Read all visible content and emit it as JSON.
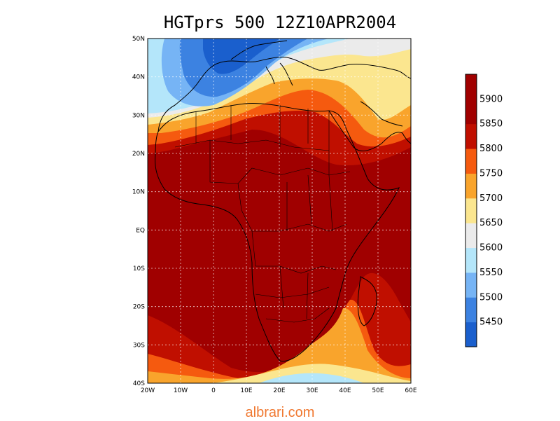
{
  "title": "HGTprs 500 12Z10APR2004",
  "watermark": "albrari.com",
  "map": {
    "lat_labels": [
      "50N",
      "40N",
      "30N",
      "20N",
      "10N",
      "EQ",
      "10S",
      "20S",
      "30S",
      "40S"
    ],
    "lon_labels": [
      "20W",
      "10W",
      "0",
      "10E",
      "20E",
      "30E",
      "40E",
      "50E",
      "60E"
    ],
    "lat_range": [
      -40,
      50
    ],
    "lon_range": [
      -20,
      60
    ],
    "grid": true
  },
  "legend": {
    "colors": [
      "#1a5fcd",
      "#3c82e1",
      "#76b4f5",
      "#b4e6fa",
      "#ebebeb",
      "#fbe68f",
      "#f9a42c",
      "#f55a0f",
      "#c00f00",
      "#a00000"
    ],
    "labels": [
      "5450",
      "5500",
      "5550",
      "5600",
      "5650",
      "5700",
      "5750",
      "5800",
      "5850",
      "5900"
    ]
  }
}
